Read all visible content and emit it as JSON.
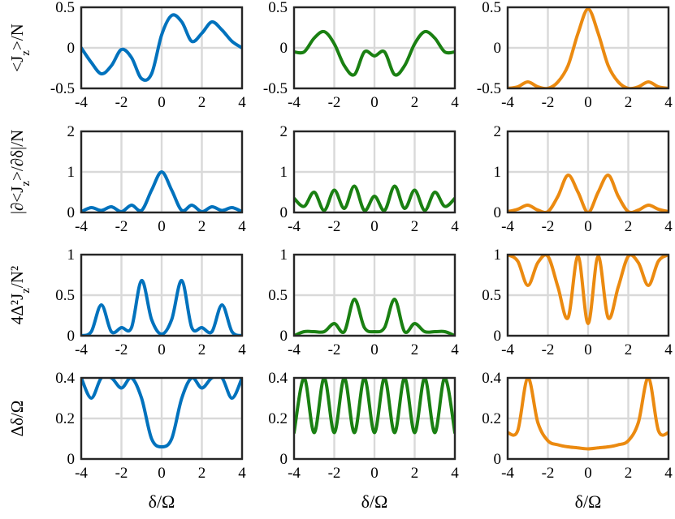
{
  "chart_data": {
    "type": "line",
    "layout": "4x3 small-multiples grid",
    "grid": true,
    "column_colors": [
      "#0072BD",
      "#1A8012",
      "#EB8A10"
    ],
    "x": [
      -4,
      -3.5,
      -3,
      -2.5,
      -2,
      -1.5,
      -1,
      -0.5,
      0,
      0.5,
      1,
      1.5,
      2,
      2.5,
      3,
      3.5,
      4
    ],
    "rows": [
      {
        "ylabel": "<J_z>/N",
        "ylim": [
          -0.5,
          0.5
        ],
        "yticks": [
          "0.5",
          "0",
          "-0.5"
        ],
        "ytick_values": [
          0.5,
          0,
          -0.5
        ],
        "xticks": [
          "-4",
          "-2",
          "0",
          "2",
          "4"
        ],
        "panels": [
          {
            "y": [
              0.0,
              -0.18,
              -0.32,
              -0.22,
              -0.02,
              -0.12,
              -0.38,
              -0.32,
              0.16,
              0.4,
              0.32,
              0.08,
              0.18,
              0.32,
              0.22,
              0.08,
              0.0
            ]
          },
          {
            "y": [
              -0.05,
              -0.05,
              0.12,
              0.2,
              0.05,
              -0.22,
              -0.33,
              -0.05,
              -0.1,
              -0.05,
              -0.33,
              -0.22,
              0.05,
              0.2,
              0.12,
              -0.05,
              -0.05
            ]
          },
          {
            "y": [
              -0.5,
              -0.48,
              -0.42,
              -0.48,
              -0.5,
              -0.42,
              -0.22,
              0.18,
              0.48,
              0.18,
              -0.22,
              -0.42,
              -0.5,
              -0.48,
              -0.42,
              -0.48,
              -0.5
            ]
          }
        ]
      },
      {
        "ylabel": "|∂<J_z>/∂δ|/N",
        "ylim": [
          0,
          2
        ],
        "yticks": [
          "2",
          "1",
          "0"
        ],
        "ytick_values": [
          2,
          1,
          0
        ],
        "xticks": [
          "-4",
          "-2",
          "0",
          "2",
          "4"
        ],
        "panels": [
          {
            "y": [
              0.02,
              0.12,
              0.05,
              0.14,
              0.02,
              0.18,
              0.05,
              0.55,
              1.0,
              0.55,
              0.05,
              0.18,
              0.02,
              0.14,
              0.05,
              0.12,
              0.02
            ]
          },
          {
            "y": [
              0.35,
              0.15,
              0.5,
              0.05,
              0.55,
              0.1,
              0.65,
              0.05,
              0.4,
              0.05,
              0.65,
              0.1,
              0.55,
              0.05,
              0.5,
              0.15,
              0.35
            ]
          },
          {
            "y": [
              0.02,
              0.08,
              0.18,
              0.06,
              0.02,
              0.4,
              0.92,
              0.5,
              0.0,
              0.5,
              0.92,
              0.4,
              0.02,
              0.06,
              0.18,
              0.08,
              0.02
            ]
          }
        ]
      },
      {
        "ylabel": "4Δ²J_z/N²",
        "ylim": [
          0,
          1
        ],
        "yticks": [
          "1",
          "0.5",
          "0"
        ],
        "ytick_values": [
          1,
          0.5,
          0
        ],
        "xticks": [
          "-4",
          "-2",
          "0",
          "2",
          "4"
        ],
        "panels": [
          {
            "y": [
              0.0,
              0.05,
              0.38,
              0.05,
              0.1,
              0.1,
              0.68,
              0.2,
              0.02,
              0.2,
              0.68,
              0.1,
              0.1,
              0.05,
              0.38,
              0.05,
              0.0
            ]
          },
          {
            "y": [
              0.0,
              0.05,
              0.05,
              0.05,
              0.15,
              0.05,
              0.45,
              0.1,
              0.05,
              0.1,
              0.45,
              0.05,
              0.15,
              0.05,
              0.05,
              0.05,
              0.0
            ]
          },
          {
            "y": [
              1.0,
              0.92,
              0.62,
              0.9,
              0.98,
              0.6,
              0.22,
              0.98,
              0.15,
              0.98,
              0.22,
              0.6,
              0.98,
              0.9,
              0.62,
              0.92,
              1.0
            ]
          }
        ]
      },
      {
        "ylabel": "Δδ/Ω",
        "ylim": [
          0,
          0.4
        ],
        "yticks": [
          "0.4",
          "0.2",
          "0"
        ],
        "ytick_values": [
          0.4,
          0.2,
          0
        ],
        "xticks": [
          "-4",
          "-2",
          "0",
          "2",
          "4"
        ],
        "xlabel": "δ/Ω",
        "panels": [
          {
            "y": [
              0.4,
              0.3,
              0.4,
              0.4,
              0.35,
              0.4,
              0.3,
              0.1,
              0.06,
              0.1,
              0.3,
              0.4,
              0.35,
              0.4,
              0.4,
              0.3,
              0.4
            ]
          },
          {
            "y": [
              0.13,
              0.4,
              0.13,
              0.4,
              0.13,
              0.4,
              0.13,
              0.4,
              0.13,
              0.4,
              0.13,
              0.4,
              0.13,
              0.4,
              0.13,
              0.4,
              0.13
            ]
          },
          {
            "y": [
              0.13,
              0.14,
              0.4,
              0.18,
              0.09,
              0.07,
              0.06,
              0.055,
              0.05,
              0.055,
              0.06,
              0.07,
              0.09,
              0.18,
              0.4,
              0.14,
              0.13
            ]
          }
        ]
      }
    ]
  }
}
